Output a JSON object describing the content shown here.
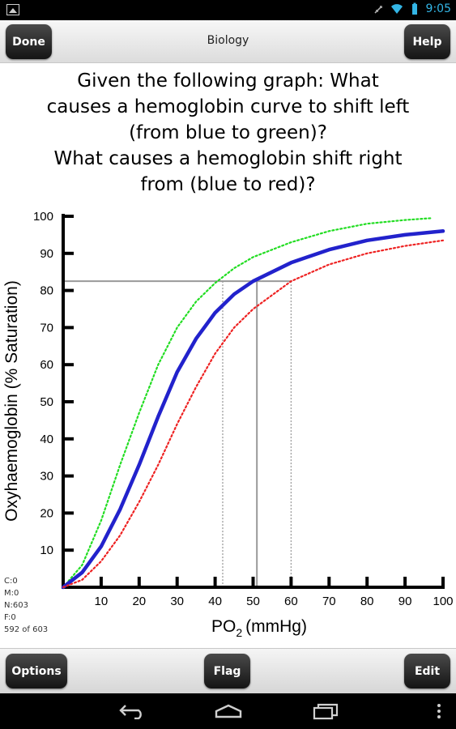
{
  "status_bar": {
    "time": "9:05"
  },
  "title_bar": {
    "title": "Biology",
    "done_label": "Done",
    "help_label": "Help"
  },
  "question": {
    "lines": [
      "Given the following graph:  What",
      "causes a hemoglobin curve to shift left",
      "(from blue to green)?",
      "What causes a hemoglobin shift right",
      "from (blue to red)?"
    ]
  },
  "chart_data": {
    "type": "line",
    "xlabel": "PO",
    "xlabel_sub": "2",
    "xlabel_unit": "(mmHg)",
    "ylabel": "Oxyhaemoglobin (% Saturation)",
    "xlim": [
      0,
      100
    ],
    "ylim": [
      0,
      100
    ],
    "x_ticks": [
      "10",
      "20",
      "30",
      "40",
      "50",
      "60",
      "70",
      "80",
      "90",
      "100"
    ],
    "y_ticks": [
      "10",
      "20",
      "30",
      "40",
      "50",
      "60",
      "70",
      "80",
      "90",
      "100"
    ],
    "colors": {
      "left": "#22dd22",
      "normal": "#2222cc",
      "right": "#ee2222",
      "guide": "#999999"
    },
    "series": [
      {
        "color_key": "left",
        "style": "dotted",
        "x": [
          0,
          5,
          10,
          15,
          20,
          25,
          30,
          35,
          40,
          45,
          50,
          60,
          70,
          80,
          90,
          97
        ],
        "values": [
          0,
          6,
          18,
          33,
          47,
          60,
          70,
          77,
          82,
          86,
          89,
          93,
          96,
          98,
          99,
          99.5
        ]
      },
      {
        "color_key": "normal",
        "style": "solid",
        "x": [
          0,
          5,
          10,
          15,
          20,
          25,
          30,
          35,
          40,
          45,
          50,
          60,
          70,
          80,
          90,
          100
        ],
        "values": [
          0,
          4,
          11,
          21,
          33,
          46,
          58,
          67,
          74,
          79,
          82.5,
          87.5,
          91,
          93.5,
          95,
          96
        ]
      },
      {
        "color_key": "right",
        "style": "dotted",
        "x": [
          0,
          5,
          10,
          15,
          20,
          25,
          30,
          35,
          40,
          45,
          50,
          60,
          70,
          80,
          90,
          100
        ],
        "values": [
          0,
          2,
          7,
          14,
          23,
          33,
          44,
          54,
          63,
          70,
          75,
          82.5,
          87,
          90,
          92,
          93.5
        ]
      }
    ],
    "guides": {
      "level": 82.5,
      "x_left": 42,
      "x_normal": 51,
      "x_right": 60
    }
  },
  "stats": {
    "lines": [
      "C:0",
      "M:0",
      "N:603",
      "F:0",
      "592 of 603"
    ]
  },
  "bottom_bar": {
    "options_label": "Options",
    "flag_label": "Flag",
    "edit_label": "Edit"
  }
}
